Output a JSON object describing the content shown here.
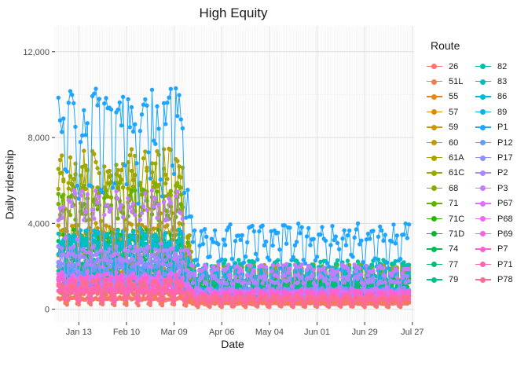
{
  "chart_data": {
    "type": "line",
    "title": "High Equity",
    "xlabel": "Date",
    "ylabel": "Daily ridership",
    "x_tick_labels": [
      "Jan 13",
      "Feb 10",
      "Mar 09",
      "Apr 06",
      "May 04",
      "Jun 01",
      "Jun 29",
      "Jul 27"
    ],
    "x_tick_dates": [
      "2020-01-13",
      "2020-02-10",
      "2020-03-09",
      "2020-04-06",
      "2020-05-04",
      "2020-06-01",
      "2020-06-29",
      "2020-07-27"
    ],
    "x_range": [
      "2019-12-30",
      "2020-07-28"
    ],
    "data_range": [
      "2020-01-01",
      "2020-07-25"
    ],
    "y_tick_labels": [
      "0",
      "4,000",
      "8,000",
      "12,000"
    ],
    "y_ticks": [
      0,
      4000,
      8000,
      12000
    ],
    "ylim": [
      -600,
      13200
    ],
    "grid": true,
    "legend_title": "Route",
    "legend_position": "right",
    "series": [
      {
        "name": "26",
        "color": "#F8766D",
        "pre": 450,
        "post": 250,
        "amp": 0.55
      },
      {
        "name": "51L",
        "color": "#F17D50",
        "pre": 700,
        "post": 350,
        "amp": 0.5
      },
      {
        "name": "55",
        "color": "#E7851E",
        "pre": 1300,
        "post": 1500,
        "amp": 0.4
      },
      {
        "name": "57",
        "color": "#DB8E00",
        "pre": 1800,
        "post": 1700,
        "amp": 0.4
      },
      {
        "name": "59",
        "color": "#CD9600",
        "pre": 2600,
        "post": 1600,
        "amp": 0.4
      },
      {
        "name": "60",
        "color": "#BE9C00",
        "pre": 3300,
        "post": 1500,
        "amp": 0.45
      },
      {
        "name": "61A",
        "color": "#AEA200",
        "pre": 6100,
        "post": 1500,
        "amp": 0.45
      },
      {
        "name": "61C",
        "color": "#9AA800",
        "pre": 5600,
        "post": 1700,
        "amp": 0.45
      },
      {
        "name": "68",
        "color": "#83AD00",
        "pre": 4800,
        "post": 1300,
        "amp": 0.5
      },
      {
        "name": "71",
        "color": "#64B200",
        "pre": 4500,
        "post": 1200,
        "amp": 0.5
      },
      {
        "name": "71C",
        "color": "#2DB600",
        "pre": 3000,
        "post": 1100,
        "amp": 0.5
      },
      {
        "name": "71D",
        "color": "#00B92A",
        "pre": 2600,
        "post": 1300,
        "amp": 0.5
      },
      {
        "name": "74",
        "color": "#00BC56",
        "pre": 1300,
        "post": 900,
        "amp": 0.45
      },
      {
        "name": "77",
        "color": "#00BE76",
        "pre": 1900,
        "post": 1100,
        "amp": 0.45
      },
      {
        "name": "79",
        "color": "#00BF91",
        "pre": 1500,
        "post": 700,
        "amp": 0.45
      },
      {
        "name": "82",
        "color": "#00C0A9",
        "pre": 2900,
        "post": 1900,
        "amp": 0.4
      },
      {
        "name": "83",
        "color": "#00BFBF",
        "pre": 2700,
        "post": 1600,
        "amp": 0.4
      },
      {
        "name": "86",
        "color": "#00BCD4",
        "pre": 3100,
        "post": 1500,
        "amp": 0.4
      },
      {
        "name": "89",
        "color": "#00B6E7",
        "pre": 1200,
        "post": 800,
        "amp": 0.45
      },
      {
        "name": "P1",
        "color": "#1EA5FF",
        "pre": 8600,
        "post": 3300,
        "amp": 0.35
      },
      {
        "name": "P12",
        "color": "#619CFF",
        "pre": 1700,
        "post": 700,
        "amp": 0.5
      },
      {
        "name": "P17",
        "color": "#8D8FFF",
        "pre": 2100,
        "post": 800,
        "amp": 0.5
      },
      {
        "name": "P2",
        "color": "#AC88FF",
        "pre": 2400,
        "post": 1300,
        "amp": 0.5
      },
      {
        "name": "P3",
        "color": "#C77CFF",
        "pre": 4500,
        "post": 1700,
        "amp": 0.5
      },
      {
        "name": "P67",
        "color": "#DE70F8",
        "pre": 1400,
        "post": 700,
        "amp": 0.5
      },
      {
        "name": "P68",
        "color": "#ED68ED",
        "pre": 1100,
        "post": 600,
        "amp": 0.5
      },
      {
        "name": "P69",
        "color": "#F862DF",
        "pre": 900,
        "post": 500,
        "amp": 0.5
      },
      {
        "name": "P7",
        "color": "#FD61D1",
        "pre": 1300,
        "post": 700,
        "amp": 0.5
      },
      {
        "name": "P71",
        "color": "#FF64B0",
        "pre": 800,
        "post": 500,
        "amp": 0.5
      },
      {
        "name": "P78",
        "color": "#FF6C91",
        "pre": 1100,
        "post": 500,
        "amp": 0.5
      }
    ]
  }
}
